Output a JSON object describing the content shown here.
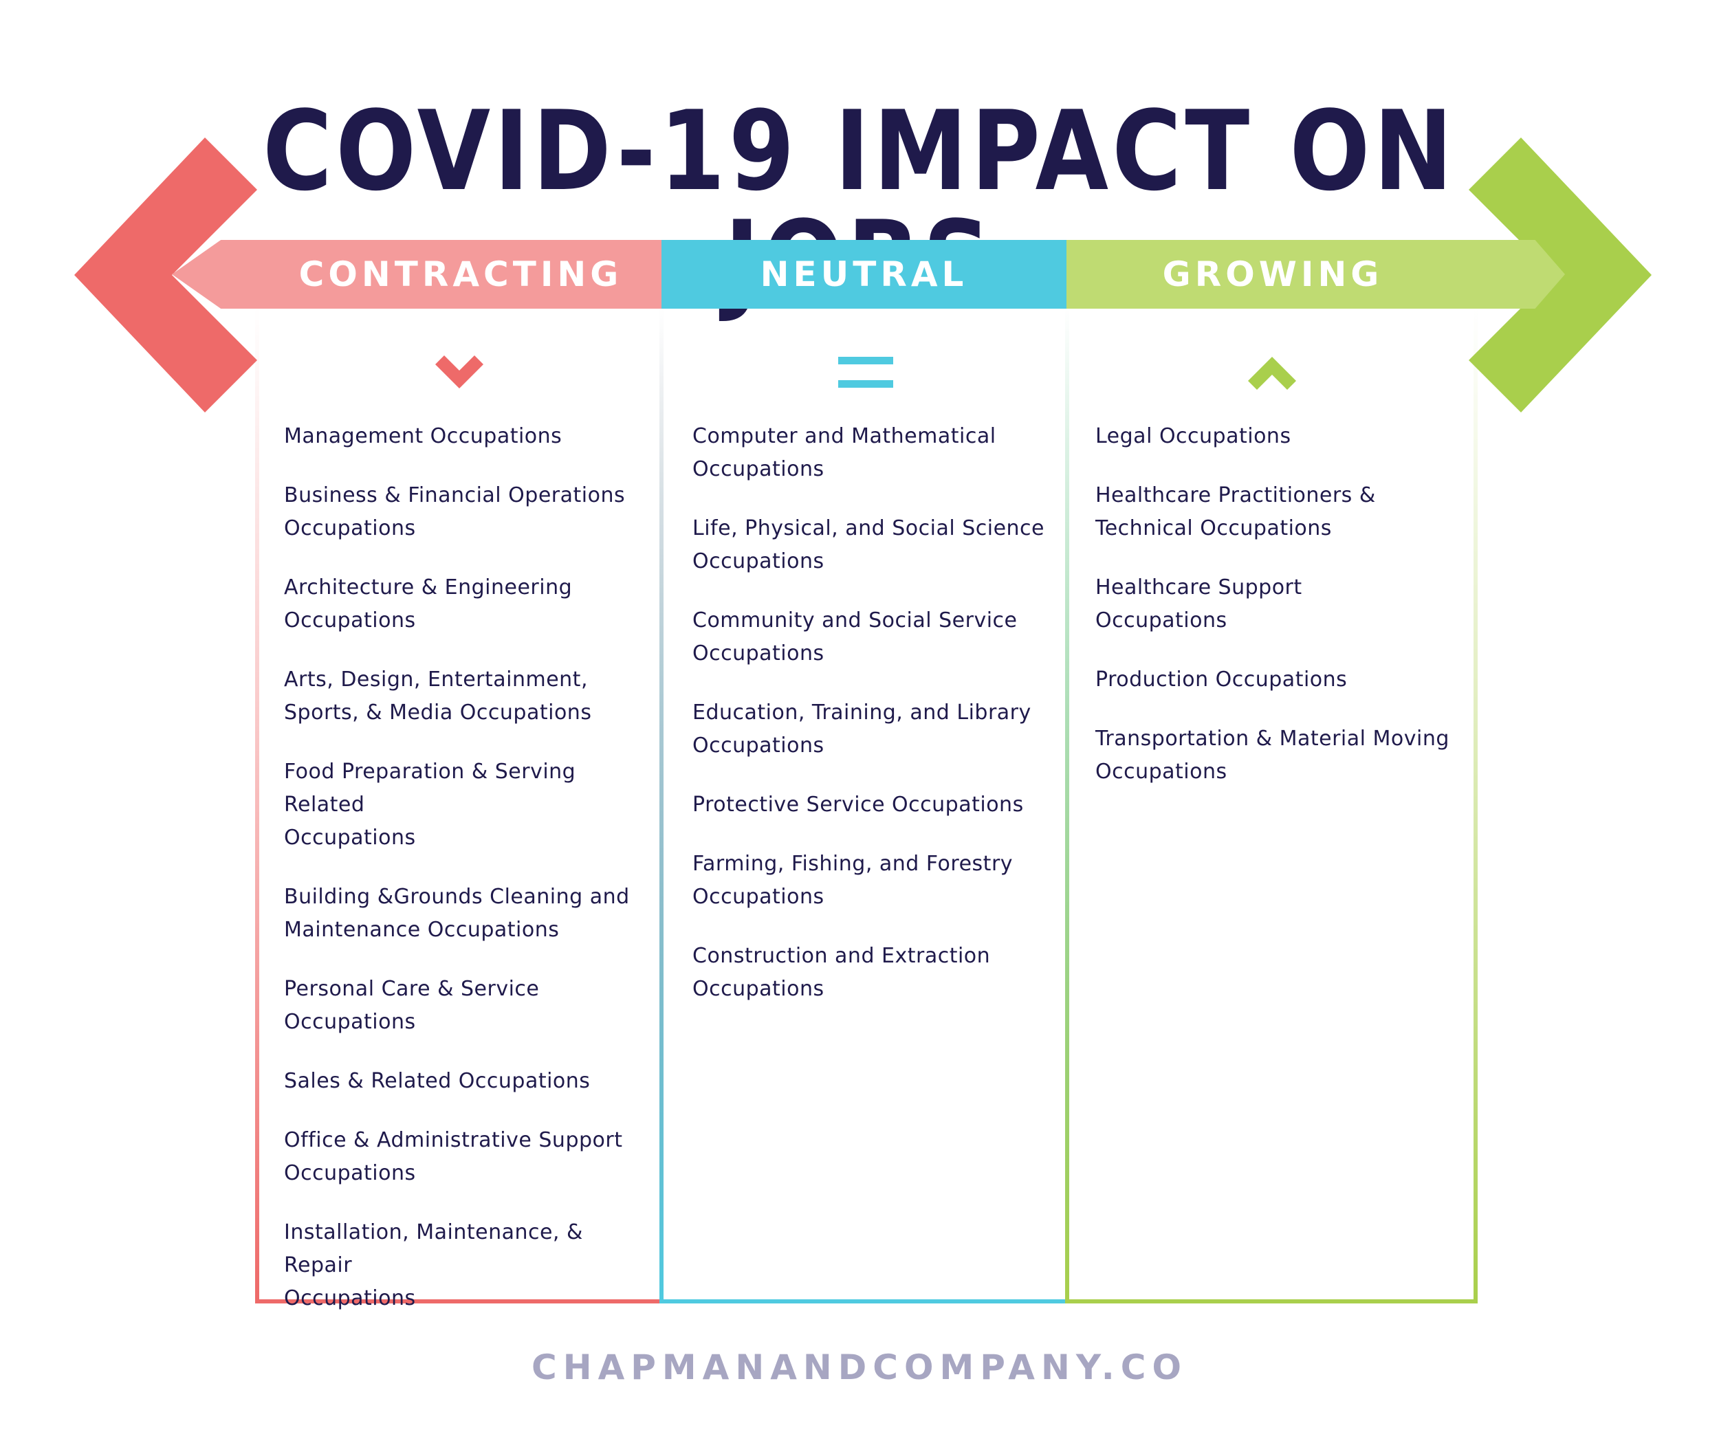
{
  "title": "COVID-19 IMPACT ON JOBS",
  "colors": {
    "title": "#1f1a4b",
    "contracting": "#ee6a69",
    "contracting_band": "#f49b9b",
    "neutral": "#4fcae0",
    "growing": "#a9cf4c",
    "growing_band": "#bfdb72",
    "footer": "#a7a6c2"
  },
  "columns": {
    "contracting": {
      "label": "CONTRACTING",
      "icon": "chevron-down-icon",
      "items": [
        "Management Occupations",
        "Business & Financial Operations\nOccupations",
        "Architecture & Engineering\nOccupations",
        "Arts, Design, Entertainment,\nSports, & Media Occupations",
        "Food Preparation & Serving\nRelated\nOccupations",
        "Building &Grounds Cleaning and\nMaintenance Occupations",
        "Personal Care & Service\nOccupations",
        "Sales & Related Occupations",
        "Office & Administrative Support\nOccupations",
        "Installation, Maintenance, & Repair\nOccupations"
      ]
    },
    "neutral": {
      "label": "NEUTRAL",
      "icon": "equals-icon",
      "items": [
        "Computer and Mathematical\nOccupations",
        "Life, Physical, and Social Science\nOccupations",
        "Community and Social Service\nOccupations",
        "Education, Training, and Library\nOccupations",
        "Protective Service Occupations",
        "Farming, Fishing, and Forestry\nOccupations",
        "Construction and Extraction\nOccupations"
      ]
    },
    "growing": {
      "label": "GROWING",
      "icon": "chevron-up-icon",
      "items": [
        "Legal Occupations",
        "Healthcare Practitioners &\nTechnical Occupations",
        "Healthcare Support\nOccupations",
        "Production Occupations",
        "Transportation & Material Moving\nOccupations"
      ]
    }
  },
  "footer": "CHAPMANANDCOMPANY.CO"
}
